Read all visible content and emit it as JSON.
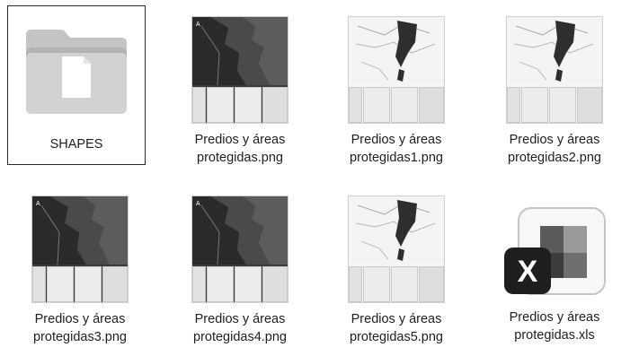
{
  "files": [
    {
      "label_lines": [
        "SHAPES"
      ],
      "type": "folder",
      "selected": true
    },
    {
      "label_lines": [
        "Predios y áreas",
        "protegidas.png"
      ],
      "type": "map-dark"
    },
    {
      "label_lines": [
        "Predios y áreas",
        "protegidas1.png"
      ],
      "type": "map-light"
    },
    {
      "label_lines": [
        "Predios y áreas",
        "protegidas2.png"
      ],
      "type": "map-light"
    },
    {
      "label_lines": [
        "Predios y áreas",
        "protegidas3.png"
      ],
      "type": "map-dark"
    },
    {
      "label_lines": [
        "Predios y áreas",
        "protegidas4.png"
      ],
      "type": "map-dark"
    },
    {
      "label_lines": [
        "Predios y áreas",
        "protegidas5.png"
      ],
      "type": "map-light"
    },
    {
      "label_lines": [
        "Predios y áreas",
        "protegidas.xls"
      ],
      "type": "excel",
      "icon_letter": "X"
    }
  ],
  "icons": {
    "folder": "folder-icon",
    "image": "image-file-icon",
    "excel": "excel-file-icon"
  }
}
